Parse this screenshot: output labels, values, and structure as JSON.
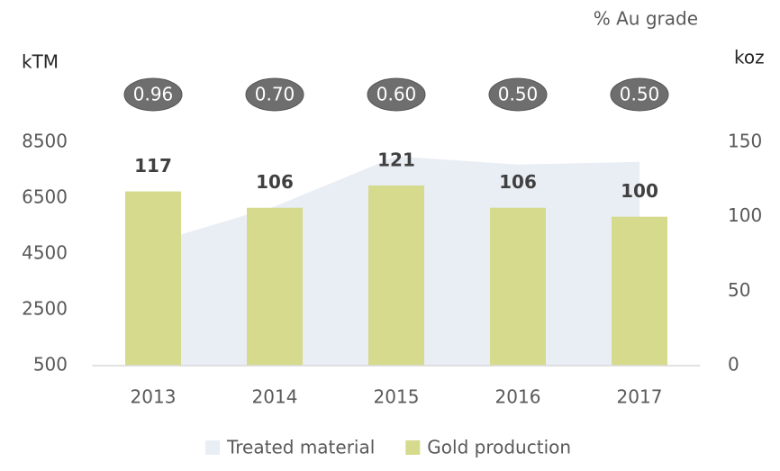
{
  "chart_data": {
    "type": "bar",
    "title": "% Au grade",
    "ylabel": "kTM",
    "y2label": "koz",
    "categories": [
      "2013",
      "2014",
      "2015",
      "2016",
      "2017"
    ],
    "series": [
      {
        "name": "Treated material",
        "type": "area",
        "color": "#e9edf4",
        "values": [
          4900,
          6200,
          8000,
          7700,
          7800
        ]
      },
      {
        "name": "Gold production",
        "type": "bar",
        "color": "#d5da8d",
        "axis": "y2",
        "values": [
          117,
          106,
          121,
          106,
          100
        ]
      }
    ],
    "grade_labels": [
      "0.96",
      "0.70",
      "0.60",
      "0.50",
      "0.50"
    ],
    "ylim": [
      500,
      8500
    ],
    "yticks": [
      500,
      2500,
      4500,
      6500,
      8500
    ],
    "y2lim": [
      0,
      150
    ],
    "y2ticks": [
      0,
      50,
      100,
      150
    ],
    "legend": "bottom"
  }
}
